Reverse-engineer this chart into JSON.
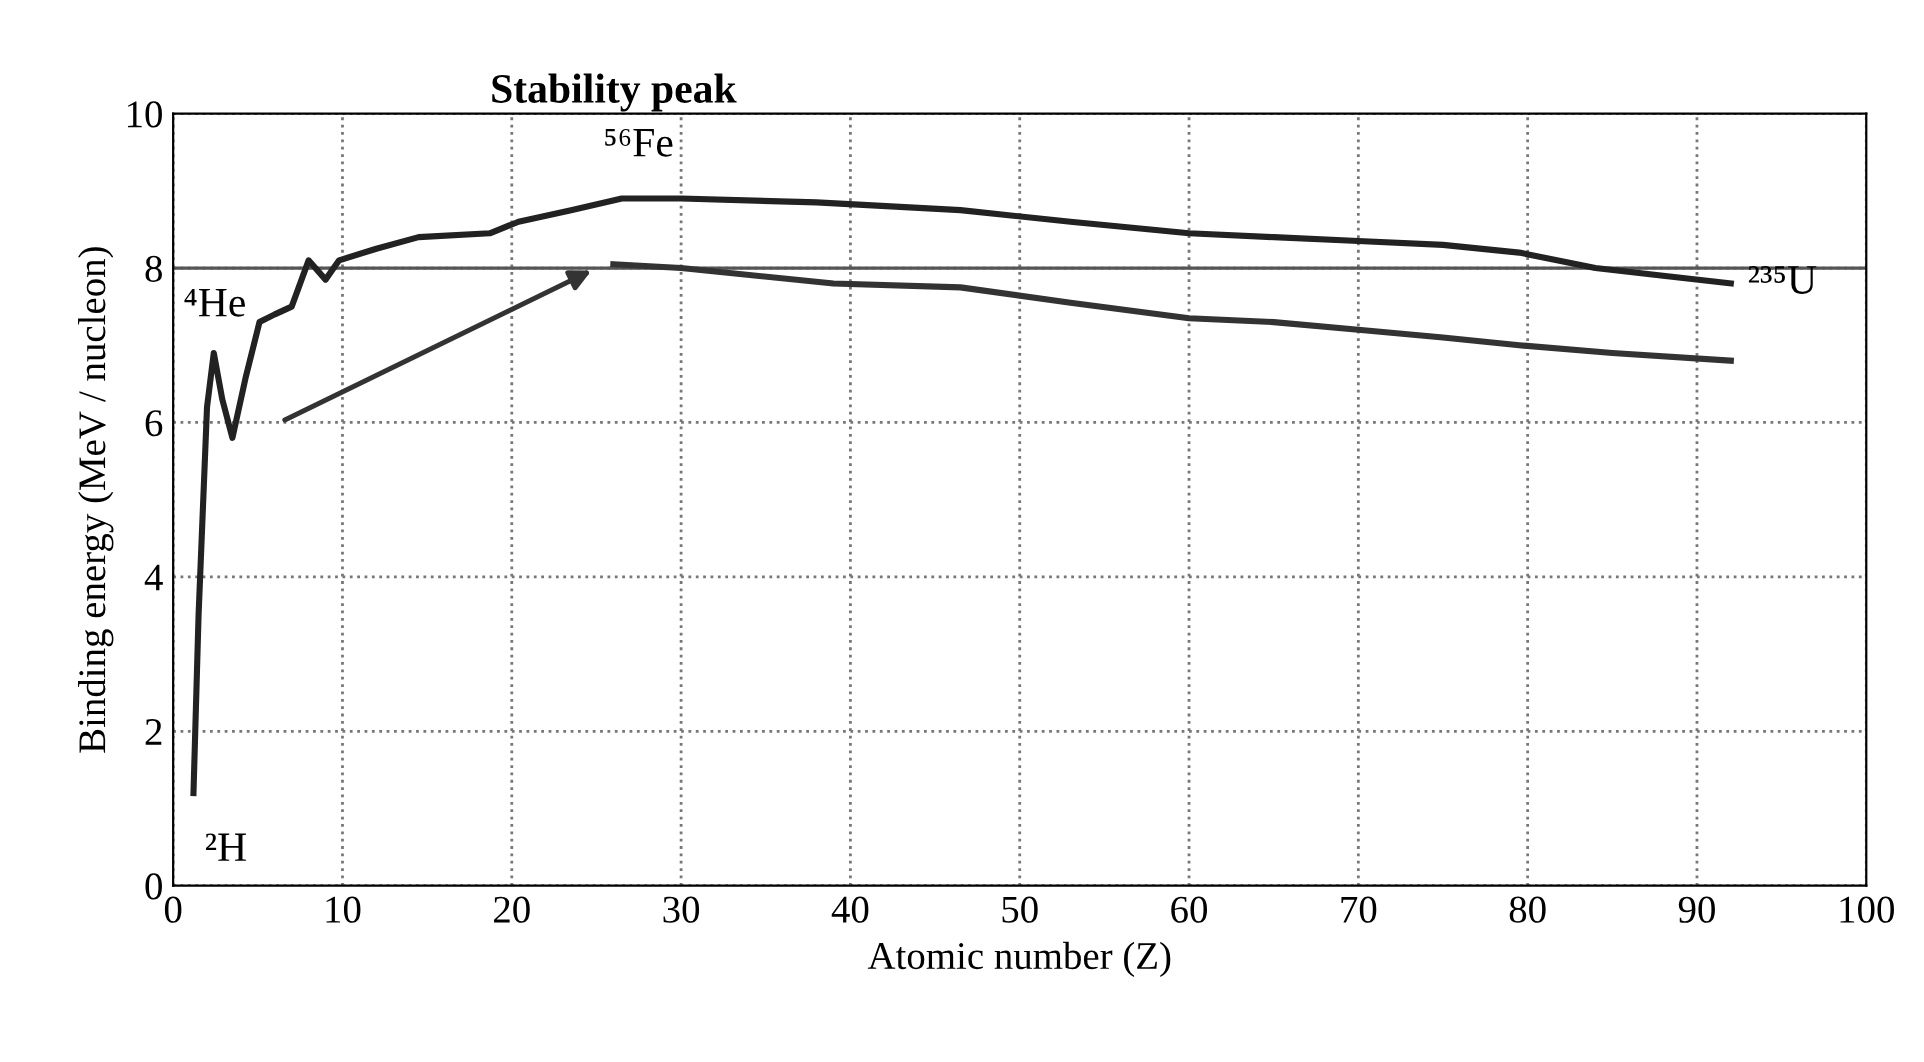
{
  "chart_data": {
    "type": "line",
    "xlabel": "Atomic number (Z)",
    "ylabel": "Binding energy (MeV / nucleon)",
    "series": [
      {
        "color": "#222222",
        "x": [
          1.2,
          1.5,
          2.0,
          2.4,
          2.9,
          3.5,
          4.3,
          5.1,
          6.0,
          7.0,
          8.0,
          9.0,
          9.8,
          12.0,
          14.5,
          18.7,
          20.4,
          23.5,
          26.5,
          30,
          38,
          46.5,
          53,
          60,
          65,
          70,
          75,
          79.5,
          84,
          88,
          92
        ],
        "values": [
          1.2,
          3.5,
          6.2,
          6.9,
          6.3,
          5.8,
          6.6,
          7.3,
          7.4,
          7.5,
          8.1,
          7.85,
          8.1,
          8.25,
          8.4,
          8.45,
          8.6,
          8.75,
          8.9,
          8.9,
          8.85,
          8.75,
          8.6,
          8.45,
          8.4,
          8.35,
          8.3,
          8.2,
          8.0,
          7.9,
          7.8
        ]
      },
      {
        "color": "#333333",
        "x": [
          26,
          30,
          39,
          46.5,
          53,
          60,
          65,
          70,
          75,
          79.5,
          85,
          92
        ],
        "values": [
          8.05,
          8.0,
          7.8,
          7.75,
          7.55,
          7.35,
          7.3,
          7.2,
          7.1,
          7.0,
          6.9,
          6.8
        ]
      }
    ],
    "xlim": [
      0,
      100
    ],
    "ylim": [
      0,
      10
    ],
    "xticks": [
      0,
      10,
      20,
      30,
      40,
      50,
      60,
      70,
      80,
      90,
      100
    ],
    "yticks": [
      0,
      2,
      4,
      6,
      8,
      10
    ],
    "grid": true,
    "line_style": "solid",
    "marker": "none",
    "ref_lines": [
      {
        "axis": "y",
        "value": 8,
        "color": "#555555",
        "line_style": "solid"
      }
    ],
    "title": "Stability peak",
    "annotations": [
      {
        "text": "⁵⁶Fe",
        "x": 26.5,
        "y": 8.9
      },
      {
        "text": "²³⁵U",
        "x": 92,
        "y": 7.8
      },
      {
        "text": "⁴He",
        "x": 2.4,
        "y": 6.9
      },
      {
        "text": "²H",
        "x": 1.2,
        "y": 1.2
      }
    ],
    "legend": false
  }
}
